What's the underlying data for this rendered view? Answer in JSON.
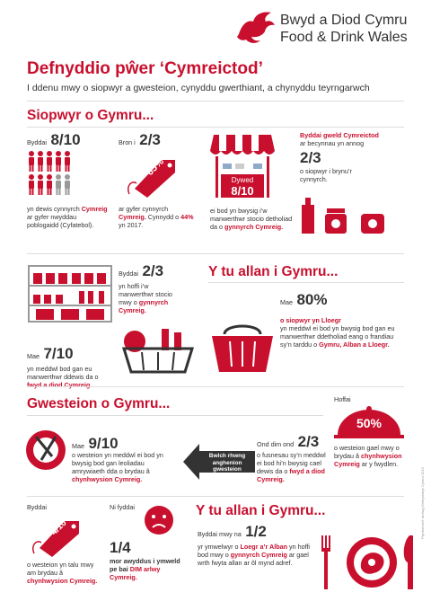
{
  "logo": {
    "line1": "Bwyd a Diod Cymru",
    "line2": "Food & Drink Wales"
  },
  "header": {
    "title": "Defnyddio pŵer ‘Cymreictod’",
    "subtitle": "I ddenu mwy o siopwyr a gwesteion, cynyddu gwerthiant, a chynyddu teyrngarwch"
  },
  "sections": {
    "shoppers": "Siopwyr o Gymru...",
    "outside1": "Y tu allan i Gymru...",
    "guests": "Gwesteion o Gymru...",
    "outside2": "Y tu allan i Gymru..."
  },
  "s1": {
    "pre": "Byddai",
    "num": "8/10",
    "t1": "yn dewis cynnyrch",
    "t2": "Cymreig",
    "t3": "ar gyfer nwyddau poblogaidd (Cyfatebol)."
  },
  "s2": {
    "pre": "Bron i",
    "num": "2/3",
    "tag": "65%",
    "t1": "ar gyfer cynnyrch",
    "t2": "Cymreig.",
    "t3": "Cynnydd o",
    "t4": "44%",
    "t5": "yn 2017."
  },
  "s3": {
    "sign1": "Dywed",
    "sign2": "8/10",
    "t1": "ei bod yn bwysig i’w manwerthwr stocio detholiad da o",
    "t2": "gynnyrch Cymreig."
  },
  "s4": {
    "head": "Byddai gweld Cymreictod",
    "t1": "ar becynnau yn annog",
    "num": "2/3",
    "t2": "o siopwyr i brynu’r cynnyrch."
  },
  "s5": {
    "pre": "Mae",
    "num": "7/10",
    "t1": "yn meddwl bod gan eu manwerthwr ddewis da o",
    "t2": "fwyd a diod Cymreig."
  },
  "s6": {
    "pre": "Byddai",
    "num": "2/3",
    "t1": "yn hoffi i’w manwerthwr stocio mwy o",
    "t2": "gynnyrch Cymreig."
  },
  "s7": {
    "pre": "Mae",
    "num": "80%",
    "t1": "o siopwyr yn Lloegr",
    "t2": "yn meddwl ei bod yn bwysig bod gan eu manwerthwr ddetholiad eang o frandiau sy’n tarddu o",
    "t3": "Gymru, Alban a Lloegr."
  },
  "g1": {
    "pre": "Mae",
    "num": "9/10",
    "t1": "o westeion yn meddwl ei bod yn bwysig bod gan leoliadau amrywiaeth dda o brydau â",
    "t2": "chynhwysion Cymreig."
  },
  "g2": {
    "arrow1": "Bwlch rhwng",
    "arrow2": "anghenion",
    "arrow3": "gwesteion"
  },
  "g3": {
    "pre": "Ond dim ond",
    "num": "2/3",
    "t1": "o fusnesau sy’n meddwl ei bod hi’n bwysig cael dewis da o",
    "t2": "fwyd a diod Cymreig."
  },
  "g4": {
    "pre": "Hoffai",
    "badge": "50%",
    "t1": "o westeion gael mwy o brydau â",
    "t2": "chynhwysion Cymreig",
    "t3": "ar y fwydlen."
  },
  "g5": {
    "pre": "Byddai",
    "tag": "4/10",
    "t1": "o westeion yn talu mwy am brydau â",
    "t2": "chynhwysion Cymreig."
  },
  "g6": {
    "pre": "Ni fyddai",
    "num": "1/4",
    "t1": "mor awyddus i ymweld pe bai",
    "t2": "DIM arlwy Cymreig."
  },
  "g7": {
    "pre": "Byddai mwy na",
    "num": "1/2",
    "t1": "yr ymwelwyr o",
    "t2": "Loegr a’r Alban",
    "t3": "yn hoffi bod mwy o",
    "t4": "gynnyrch Cymreig",
    "t5": "ar gael wrth fwyta allan ar ôl mynd adref."
  },
  "footnote": "Ffynhonnell: arolwg Defnyddwyr Cymru 2019",
  "colors": {
    "accent": "#c8102e",
    "dark": "#333333"
  }
}
